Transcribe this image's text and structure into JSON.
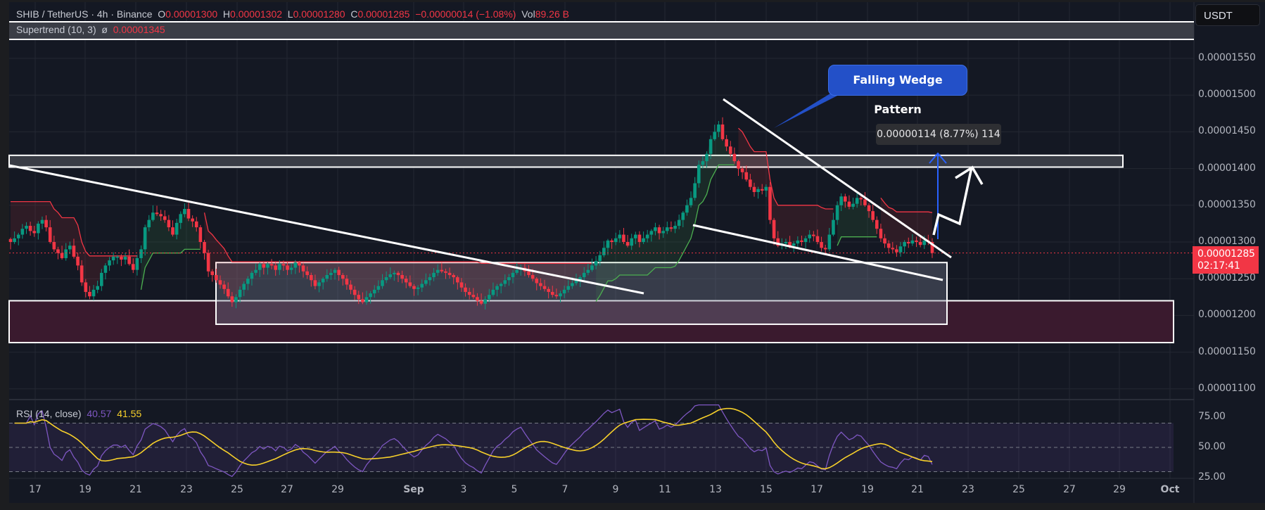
{
  "header": {
    "symbol": "SHIB / TetherUS · 4h · Binance",
    "open_label": "O",
    "open": "0.00001300",
    "high_label": "H",
    "high": "0.00001302",
    "low_label": "L",
    "low": "0.00001280",
    "close_label": "C",
    "close": "0.00001285",
    "change": "−0.00000014 (−1.08%)",
    "vol_label": "Vol",
    "vol": "89.26 B"
  },
  "supertrend": {
    "label": "Supertrend (10, 3)",
    "symbol": "ø",
    "value": "0.00001345"
  },
  "currency": "USDT",
  "price_label": {
    "price": "0.00001285",
    "countdown": "02:17:41"
  },
  "annotations": {
    "callout": "Falling Wedge Pattern",
    "measure": "0.00000114 (8.77%) 114"
  },
  "rsi": {
    "label": "RSI (14, close)",
    "value": "40.57",
    "ma_value": "41.55"
  },
  "colors": {
    "up": "#089981",
    "down": "#f23645",
    "rsi": "#7e57c2",
    "rsi_ma": "#f7d02a",
    "bg": "#141823"
  },
  "chart_data": [
    {
      "type": "candlestick",
      "title": "SHIB / TetherUS · 4h · Binance",
      "ylabel": "USDT",
      "ylim": [
        1.1e-05,
        1.58e-05
      ],
      "y_ticks": [
        "0.00001550",
        "0.00001500",
        "0.00001450",
        "0.00001400",
        "0.00001350",
        "0.00001300",
        "0.00001250",
        "0.00001200",
        "0.00001150",
        "0.00001100"
      ],
      "x_ticks": [
        "17",
        "19",
        "21",
        "23",
        "25",
        "27",
        "29",
        "Sep",
        "3",
        "5",
        "7",
        "9",
        "11",
        "13",
        "15",
        "17",
        "19",
        "21",
        "23",
        "25",
        "27",
        "29",
        "Oct"
      ],
      "close_path_e8": [
        1300,
        1305,
        1310,
        1318,
        1322,
        1315,
        1312,
        1325,
        1330,
        1320,
        1300,
        1290,
        1285,
        1278,
        1290,
        1295,
        1280,
        1268,
        1245,
        1232,
        1226,
        1235,
        1240,
        1258,
        1268,
        1275,
        1280,
        1280,
        1276,
        1280,
        1270,
        1262,
        1278,
        1290,
        1320,
        1330,
        1340,
        1338,
        1335,
        1330,
        1320,
        1310,
        1326,
        1338,
        1345,
        1332,
        1328,
        1320,
        1300,
        1285,
        1260,
        1255,
        1248,
        1242,
        1236,
        1226,
        1218,
        1225,
        1235,
        1243,
        1250,
        1258,
        1262,
        1270,
        1265,
        1270,
        1268,
        1262,
        1270,
        1268,
        1262,
        1265,
        1272,
        1268,
        1260,
        1255,
        1248,
        1240,
        1245,
        1250,
        1255,
        1258,
        1262,
        1255,
        1250,
        1242,
        1235,
        1228,
        1222,
        1218,
        1225,
        1230,
        1235,
        1240,
        1248,
        1252,
        1256,
        1258,
        1255,
        1250,
        1245,
        1240,
        1236,
        1238,
        1243,
        1248,
        1252,
        1258,
        1262,
        1260,
        1258,
        1255,
        1252,
        1245,
        1238,
        1232,
        1228,
        1225,
        1220,
        1216,
        1222,
        1228,
        1235,
        1240,
        1243,
        1248,
        1252,
        1258,
        1262,
        1265,
        1260,
        1255,
        1250,
        1244,
        1240,
        1236,
        1232,
        1228,
        1226,
        1230,
        1235,
        1240,
        1244,
        1248,
        1252,
        1258,
        1262,
        1268,
        1274,
        1282,
        1292,
        1302,
        1300,
        1305,
        1310,
        1300,
        1295,
        1305,
        1310,
        1300,
        1305,
        1310,
        1315,
        1320,
        1312,
        1315,
        1320,
        1318,
        1322,
        1330,
        1340,
        1350,
        1360,
        1380,
        1405,
        1410,
        1420,
        1440,
        1450,
        1460,
        1440,
        1430,
        1420,
        1410,
        1400,
        1395,
        1385,
        1375,
        1368,
        1372,
        1370,
        1375,
        1330,
        1305,
        1295,
        1298,
        1300,
        1295,
        1298,
        1302,
        1300,
        1305,
        1310,
        1308,
        1300,
        1292,
        1290,
        1310,
        1330,
        1350,
        1362,
        1355,
        1348,
        1352,
        1360,
        1358,
        1350,
        1342,
        1330,
        1318,
        1305,
        1298,
        1292,
        1290,
        1286,
        1294,
        1300,
        1298,
        1302,
        1300,
        1296,
        1302,
        1300,
        1285
      ],
      "annotations": [
        "Falling Wedge Pattern",
        "0.00000114 (8.77%) 114"
      ],
      "zones": [
        {
          "name": "resistance",
          "top": 1.418e-05,
          "bottom": 1.402e-05
        },
        {
          "name": "range",
          "top": 1.272e-05,
          "bottom": 1.188e-05
        },
        {
          "name": "support",
          "top": 1.22e-05,
          "bottom": 1.163e-05
        }
      ],
      "last_price": 1.285e-05
    },
    {
      "type": "line",
      "title": "RSI (14, close)",
      "y_ticks": [
        "75.00",
        "50.00",
        "25.00"
      ],
      "levels": [
        70,
        50,
        30
      ],
      "series": [
        {
          "name": "RSI",
          "last": 40.57
        },
        {
          "name": "RSI MA",
          "last": 41.55
        }
      ]
    }
  ]
}
